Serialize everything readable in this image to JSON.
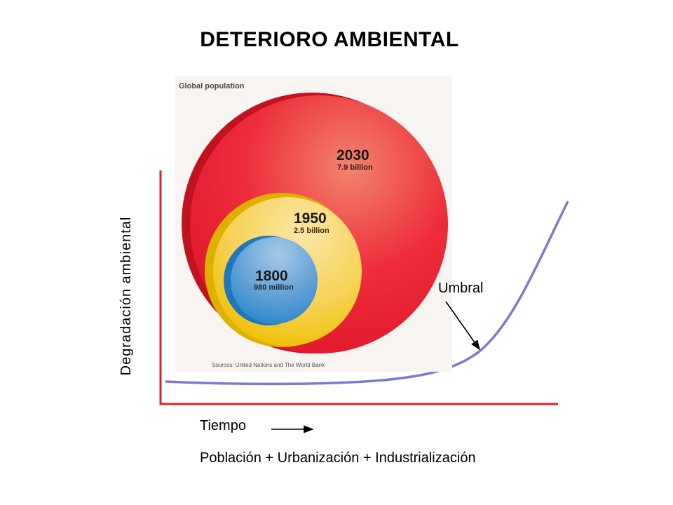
{
  "title": "DETERIORO AMBIENTAL",
  "y_axis_label": "Degradación ambiental",
  "x_axis_label": "Tiempo",
  "x_factors": "Población + Urbanización + Industrialización",
  "threshold_label": "Umbral",
  "colors": {
    "axis": "#e02020",
    "curve": "#7b79d6",
    "circle_2030": "#ec1c2e",
    "circle_1950": "#f2c200",
    "circle_1800": "#2f8fd0"
  },
  "icons": {
    "x_arrow": "right-arrow-icon",
    "threshold_pointer": "pointer-arrow-icon"
  },
  "population_figure": {
    "title": "Global population",
    "source": "Sources: United Nations and The World Bank",
    "circles": [
      {
        "year": "2030",
        "value": "7.9 billion"
      },
      {
        "year": "1950",
        "value": "2.5 billion"
      },
      {
        "year": "1800",
        "value": "980 million"
      }
    ]
  },
  "chart_data": {
    "type": "line",
    "title": "DETERIORO AMBIENTAL",
    "xlabel": "Tiempo",
    "ylabel": "Degradación ambiental",
    "series": [
      {
        "values": "increasing curve: near-flat, then rising sharply after the threshold"
      }
    ],
    "annotations": [
      "Umbral"
    ],
    "population_circles": [
      {
        "year": 1800,
        "population_billion": 0.98
      },
      {
        "year": 1950,
        "population_billion": 2.5
      },
      {
        "year": 2030,
        "population_billion": 7.9
      }
    ]
  }
}
